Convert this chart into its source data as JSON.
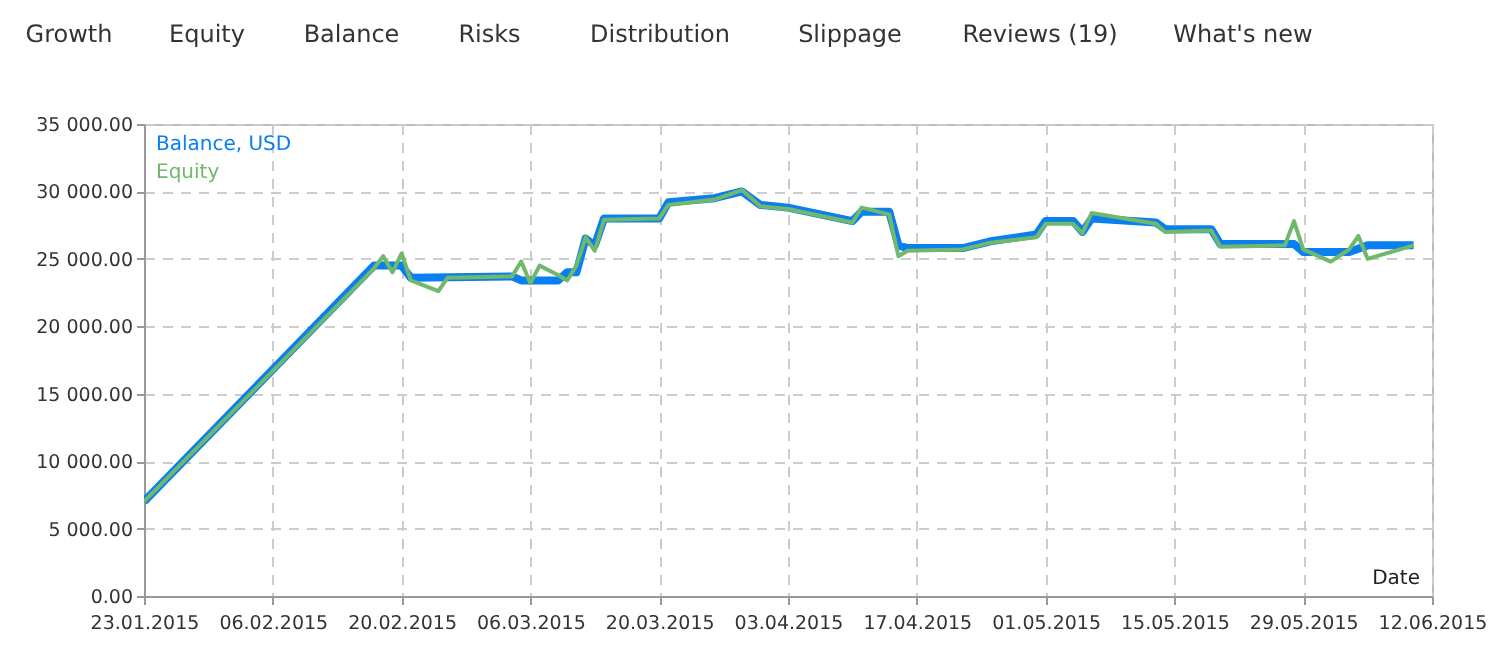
{
  "chart_data": {
    "type": "line",
    "xlabel": "Date",
    "annotations": [
      "Growth",
      "Equity",
      "Balance",
      "Risks",
      "Distribution",
      "Slippage",
      "Reviews (19)",
      "What's new"
    ],
    "xlim": [
      "2015-01-23",
      "2015-06-12"
    ],
    "xticks": [
      {
        "value": "2015-01-23",
        "label": "23.01.2015"
      },
      {
        "value": "2015-02-06",
        "label": "06.02.2015"
      },
      {
        "value": "2015-02-20",
        "label": "20.02.2015"
      },
      {
        "value": "2015-03-06",
        "label": "06.03.2015"
      },
      {
        "value": "2015-03-20",
        "label": "20.03.2015"
      },
      {
        "value": "2015-04-03",
        "label": "03.04.2015"
      },
      {
        "value": "2015-04-17",
        "label": "17.04.2015"
      },
      {
        "value": "2015-05-01",
        "label": "01.05.2015"
      },
      {
        "value": "2015-05-15",
        "label": "15.05.2015"
      },
      {
        "value": "2015-05-29",
        "label": "29.05.2015"
      },
      {
        "value": "2015-06-12",
        "label": "12.06.2015"
      }
    ],
    "ylim": [
      0,
      35000
    ],
    "yticks": [
      {
        "value": 0,
        "label": "0.00"
      },
      {
        "value": 5000,
        "label": "5 000.00"
      },
      {
        "value": 10000,
        "label": "10 000.00"
      },
      {
        "value": 15000,
        "label": "15 000.00"
      },
      {
        "value": 20000,
        "label": "20 000.00"
      },
      {
        "value": 25000,
        "label": "25 000.00"
      },
      {
        "value": 30000,
        "label": "30 000.00"
      },
      {
        "value": 35000,
        "label": "35 000.00"
      }
    ],
    "grid": true,
    "legend": "top left",
    "line_style": "solid",
    "marker": "none",
    "series": [
      {
        "name": "Balance, USD",
        "color": "#0a7ff0",
        "x": [
          "2015-01-23",
          "2015-02-17",
          "2015-02-20",
          "2015-02-21",
          "2015-03-04",
          "2015-03-05",
          "2015-03-09",
          "2015-03-10",
          "2015-03-11",
          "2015-03-12",
          "2015-03-13",
          "2015-03-14",
          "2015-03-20",
          "2015-03-21",
          "2015-03-26",
          "2015-03-29",
          "2015-03-31",
          "2015-04-03",
          "2015-04-10",
          "2015-04-11",
          "2015-04-14",
          "2015-04-15",
          "2015-04-16",
          "2015-04-22",
          "2015-04-25",
          "2015-04-30",
          "2015-05-01",
          "2015-05-04",
          "2015-05-05",
          "2015-05-06",
          "2015-05-13",
          "2015-05-14",
          "2015-05-19",
          "2015-05-20",
          "2015-05-28",
          "2015-05-29",
          "2015-06-03",
          "2015-06-05",
          "2015-06-10"
        ],
        "values": [
          7000,
          24500,
          24500,
          23600,
          23700,
          23400,
          23400,
          24000,
          24000,
          26500,
          26000,
          28000,
          28000,
          29200,
          29500,
          30000,
          29000,
          28800,
          27800,
          28500,
          28500,
          26000,
          25800,
          25800,
          26300,
          26800,
          27800,
          27800,
          27000,
          28000,
          27700,
          27200,
          27200,
          26100,
          26100,
          25500,
          25500,
          26000,
          26000
        ]
      },
      {
        "name": "Equity",
        "color": "#70b86c",
        "x": [
          "2015-01-23",
          "2015-02-17",
          "2015-02-18",
          "2015-02-19",
          "2015-02-20",
          "2015-02-21",
          "2015-02-24",
          "2015-02-25",
          "2015-03-04",
          "2015-03-05",
          "2015-03-06",
          "2015-03-07",
          "2015-03-09",
          "2015-03-10",
          "2015-03-11",
          "2015-03-12",
          "2015-03-13",
          "2015-03-14",
          "2015-03-20",
          "2015-03-21",
          "2015-03-26",
          "2015-03-29",
          "2015-03-31",
          "2015-04-03",
          "2015-04-10",
          "2015-04-11",
          "2015-04-14",
          "2015-04-15",
          "2015-04-16",
          "2015-04-22",
          "2015-04-25",
          "2015-04-30",
          "2015-05-01",
          "2015-05-04",
          "2015-05-05",
          "2015-05-06",
          "2015-05-13",
          "2015-05-14",
          "2015-05-19",
          "2015-05-20",
          "2015-05-27",
          "2015-05-28",
          "2015-05-29",
          "2015-06-01",
          "2015-06-03",
          "2015-06-04",
          "2015-06-05",
          "2015-06-10"
        ],
        "values": [
          7000,
          24300,
          25200,
          24000,
          25400,
          23400,
          22600,
          23600,
          23700,
          24800,
          23200,
          24500,
          23800,
          23400,
          24500,
          26600,
          25600,
          27900,
          28000,
          29000,
          29400,
          30100,
          28900,
          28700,
          27700,
          28800,
          28300,
          25200,
          25600,
          25700,
          26200,
          26600,
          27600,
          27600,
          26900,
          28400,
          27600,
          27000,
          27100,
          25900,
          26000,
          27800,
          25700,
          24800,
          25700,
          26700,
          25000,
          26000
        ]
      }
    ]
  }
}
